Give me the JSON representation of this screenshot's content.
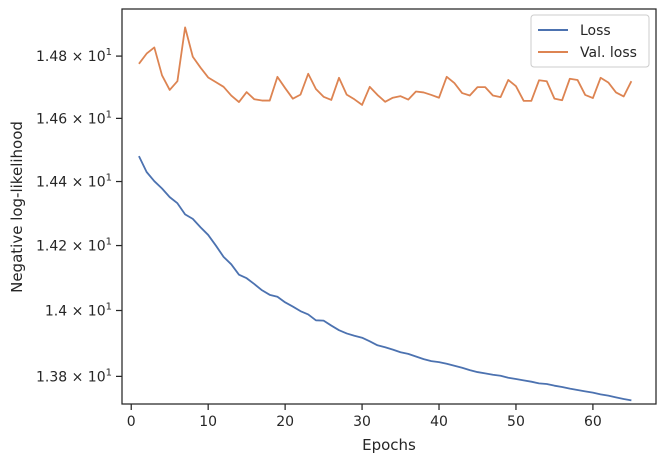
{
  "chart_data": {
    "type": "line",
    "xlabel": "Epochs",
    "ylabel": "Negative log-likelihood",
    "x_ticks": [
      0,
      10,
      20,
      30,
      40,
      50,
      60
    ],
    "x_tick_labels": [
      "0",
      "10",
      "20",
      "30",
      "40",
      "50",
      "60"
    ],
    "xlim": [
      -1.2,
      68.2
    ],
    "y_scale": "log",
    "ylim": [
      13.717,
      14.953
    ],
    "y_ticks": [
      13.8,
      14.0,
      14.2,
      14.4,
      14.6,
      14.8
    ],
    "y_tick_labels": [
      {
        "mantissa": "1.38",
        "times": "×",
        "base": "10",
        "exp": "1"
      },
      {
        "mantissa": "1.4",
        "times": "×",
        "base": "10",
        "exp": "1"
      },
      {
        "mantissa": "1.42",
        "times": "×",
        "base": "10",
        "exp": "1"
      },
      {
        "mantissa": "1.44",
        "times": "×",
        "base": "10",
        "exp": "1"
      },
      {
        "mantissa": "1.46",
        "times": "×",
        "base": "10",
        "exp": "1"
      },
      {
        "mantissa": "1.48",
        "times": "×",
        "base": "10",
        "exp": "1"
      }
    ],
    "grid": false,
    "legend_position": "top-right",
    "x": [
      1,
      2,
      3,
      4,
      5,
      6,
      7,
      8,
      9,
      10,
      11,
      12,
      13,
      14,
      15,
      16,
      17,
      18,
      19,
      20,
      21,
      22,
      23,
      24,
      25,
      26,
      27,
      28,
      29,
      30,
      31,
      32,
      33,
      34,
      35,
      36,
      37,
      38,
      39,
      40,
      41,
      42,
      43,
      44,
      45,
      46,
      47,
      48,
      49,
      50,
      51,
      52,
      53,
      54,
      55,
      56,
      57,
      58,
      59,
      60,
      61,
      62,
      63,
      64,
      65
    ],
    "series": [
      {
        "name": "Loss",
        "color": "#4c72b0",
        "values": [
          14.48,
          14.43,
          14.401,
          14.378,
          14.351,
          14.332,
          14.297,
          14.283,
          14.257,
          14.233,
          14.2,
          14.165,
          14.142,
          14.11,
          14.099,
          14.081,
          14.062,
          14.048,
          14.042,
          14.025,
          14.012,
          13.998,
          13.988,
          13.97,
          13.969,
          13.954,
          13.94,
          13.93,
          13.923,
          13.917,
          13.906,
          13.894,
          13.888,
          13.881,
          13.873,
          13.868,
          13.86,
          13.852,
          13.846,
          13.843,
          13.838,
          13.832,
          13.826,
          13.819,
          13.813,
          13.809,
          13.805,
          13.802,
          13.796,
          13.792,
          13.788,
          13.784,
          13.779,
          13.777,
          13.772,
          13.768,
          13.763,
          13.759,
          13.755,
          13.751,
          13.746,
          13.742,
          13.737,
          13.732,
          13.728
        ]
      },
      {
        "name": "Val. loss",
        "color": "#dd8452",
        "values": [
          14.775,
          14.808,
          14.828,
          14.738,
          14.691,
          14.719,
          14.893,
          14.798,
          14.763,
          14.731,
          14.716,
          14.701,
          14.673,
          14.652,
          14.684,
          14.661,
          14.657,
          14.657,
          14.733,
          14.697,
          14.663,
          14.676,
          14.743,
          14.694,
          14.669,
          14.659,
          14.73,
          14.676,
          14.661,
          14.643,
          14.701,
          14.675,
          14.653,
          14.666,
          14.671,
          14.66,
          14.686,
          14.683,
          14.675,
          14.666,
          14.733,
          14.713,
          14.681,
          14.673,
          14.7,
          14.7,
          14.673,
          14.668,
          14.723,
          14.703,
          14.656,
          14.656,
          14.722,
          14.719,
          14.663,
          14.658,
          14.727,
          14.723,
          14.675,
          14.665,
          14.73,
          14.715,
          14.683,
          14.67,
          14.719
        ]
      }
    ]
  }
}
